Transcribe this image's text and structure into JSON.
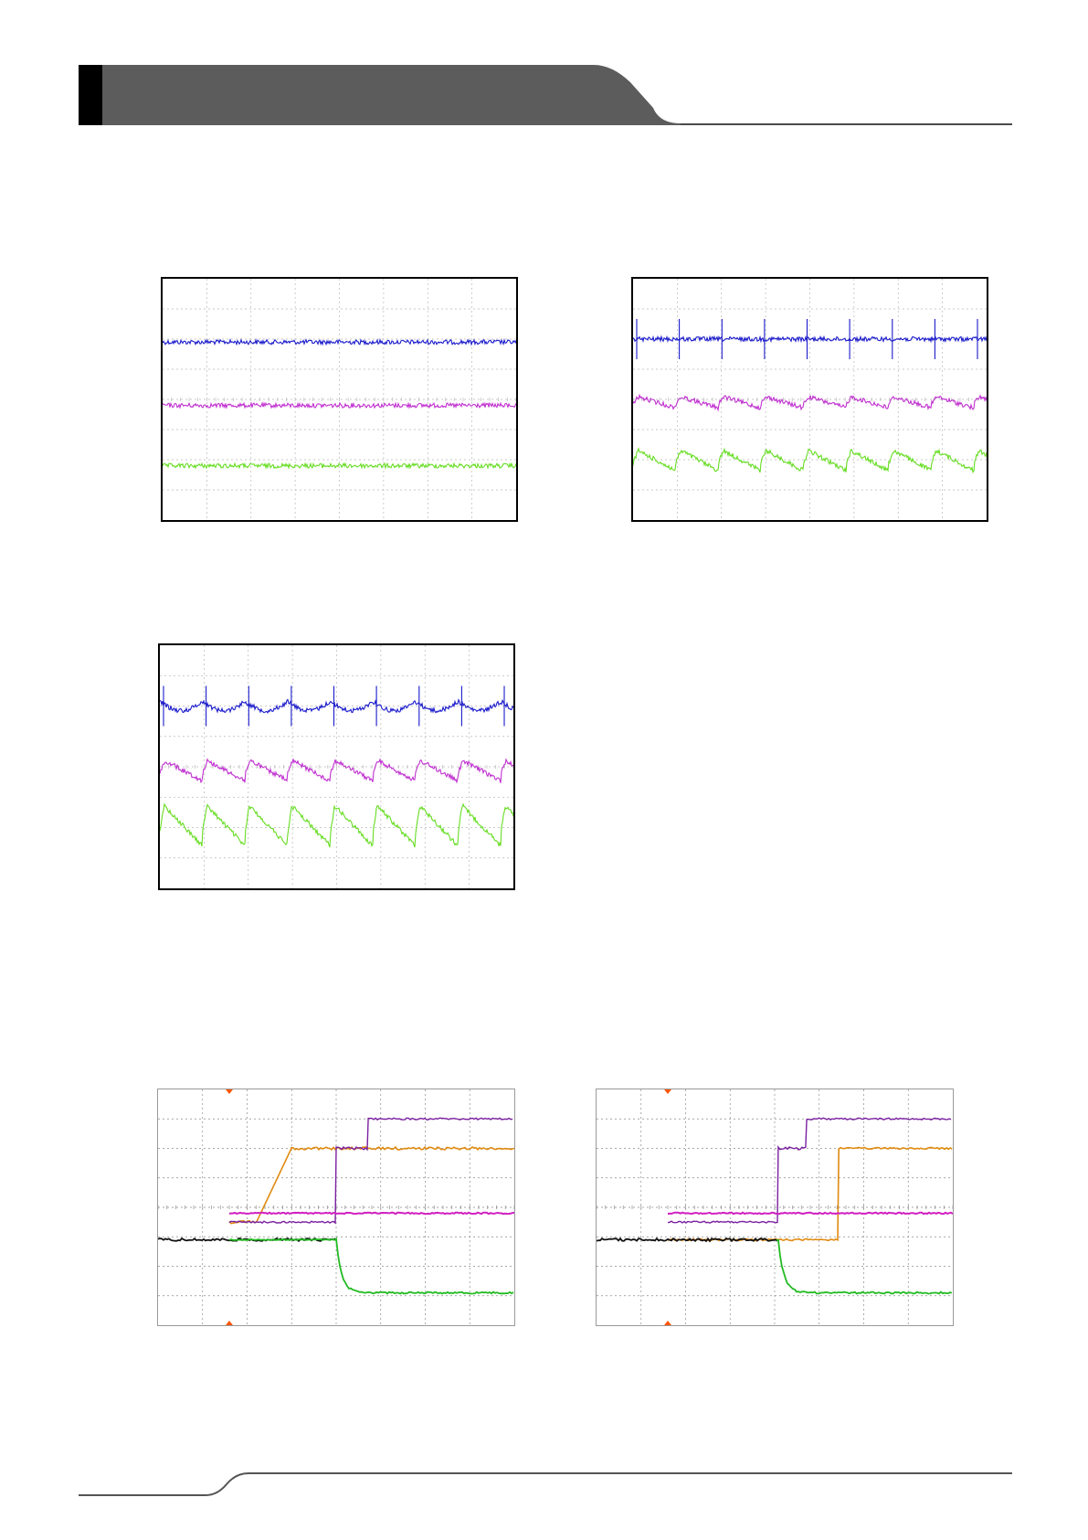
{
  "page": {
    "header_color": "#5c5c5c",
    "header_accent_color": "#000000",
    "rule_color": "#444444"
  },
  "ripple_traces": [
    {
      "id": "scope-ripple-1",
      "channels": [
        {
          "color": "#1a1acc",
          "pattern": "noise",
          "level_div": 2.1
        },
        {
          "color": "#c030d0",
          "pattern": "noise",
          "level_div": 4.2
        },
        {
          "color": "#66dd22",
          "pattern": "noise",
          "level_div": 6.2
        }
      ]
    },
    {
      "id": "scope-ripple-2",
      "channels": [
        {
          "color": "#1a1acc",
          "pattern": "spikes",
          "level_div": 2.0
        },
        {
          "color": "#c030d0",
          "pattern": "small-sawtooth",
          "level_div": 4.1
        },
        {
          "color": "#66dd22",
          "pattern": "sawtooth",
          "level_div": 6.0
        }
      ]
    },
    {
      "id": "scope-ripple-3",
      "channels": [
        {
          "color": "#1a1acc",
          "pattern": "arc-spikes",
          "level_div": 2.0
        },
        {
          "color": "#c030d0",
          "pattern": "sawtooth",
          "level_div": 4.1
        },
        {
          "color": "#66dd22",
          "pattern": "large-sawtooth",
          "level_div": 6.0
        }
      ]
    }
  ],
  "startup_traces": [
    {
      "id": "scope-startup-1",
      "trigger_marker_color": "#ff5500",
      "trigger_div": 2.0,
      "channels": [
        {
          "color": "#7a1fa0",
          "name": "purple"
        },
        {
          "color": "#e08a10",
          "name": "orange"
        },
        {
          "color": "#d020c0",
          "name": "magenta"
        },
        {
          "color": "#111111",
          "name": "black"
        },
        {
          "color": "#22bb22",
          "name": "green"
        }
      ]
    },
    {
      "id": "scope-startup-2",
      "trigger_marker_color": "#ff5500",
      "trigger_div": 2.0,
      "channels": [
        {
          "color": "#7a1fa0",
          "name": "purple"
        },
        {
          "color": "#e08a10",
          "name": "orange"
        },
        {
          "color": "#d020c0",
          "name": "magenta"
        },
        {
          "color": "#111111",
          "name": "black"
        },
        {
          "color": "#22bb22",
          "name": "green"
        }
      ]
    }
  ]
}
